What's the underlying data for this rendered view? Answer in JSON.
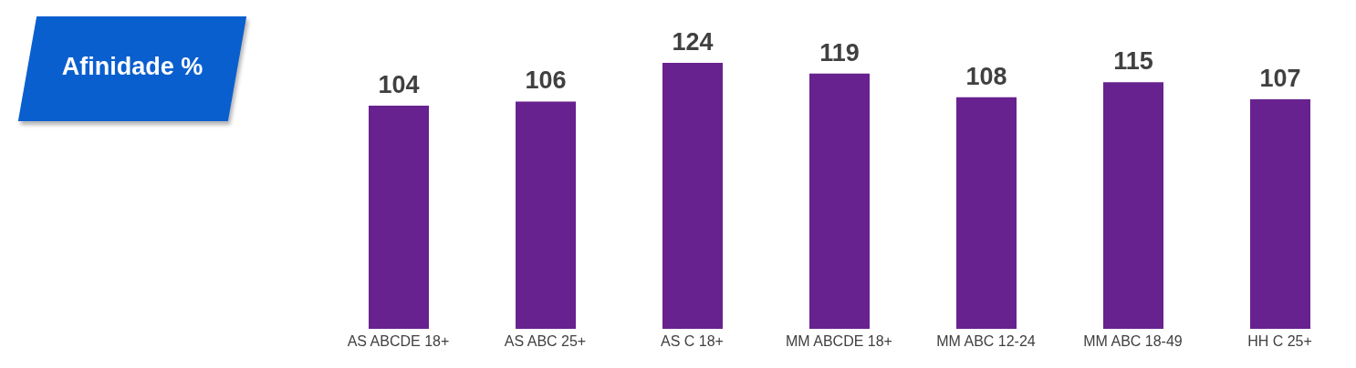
{
  "chart_data": {
    "type": "bar",
    "title": "Afinidade %",
    "categories": [
      "AS ABCDE 18+",
      "AS ABC 25+",
      "AS C 18+",
      "MM ABCDE 18+",
      "MM ABC 12-24",
      "MM ABC 18-49",
      "HH C 25+"
    ],
    "values": [
      104,
      106,
      124,
      119,
      108,
      115,
      107
    ],
    "color": "#68228f",
    "data_labels": true
  }
}
